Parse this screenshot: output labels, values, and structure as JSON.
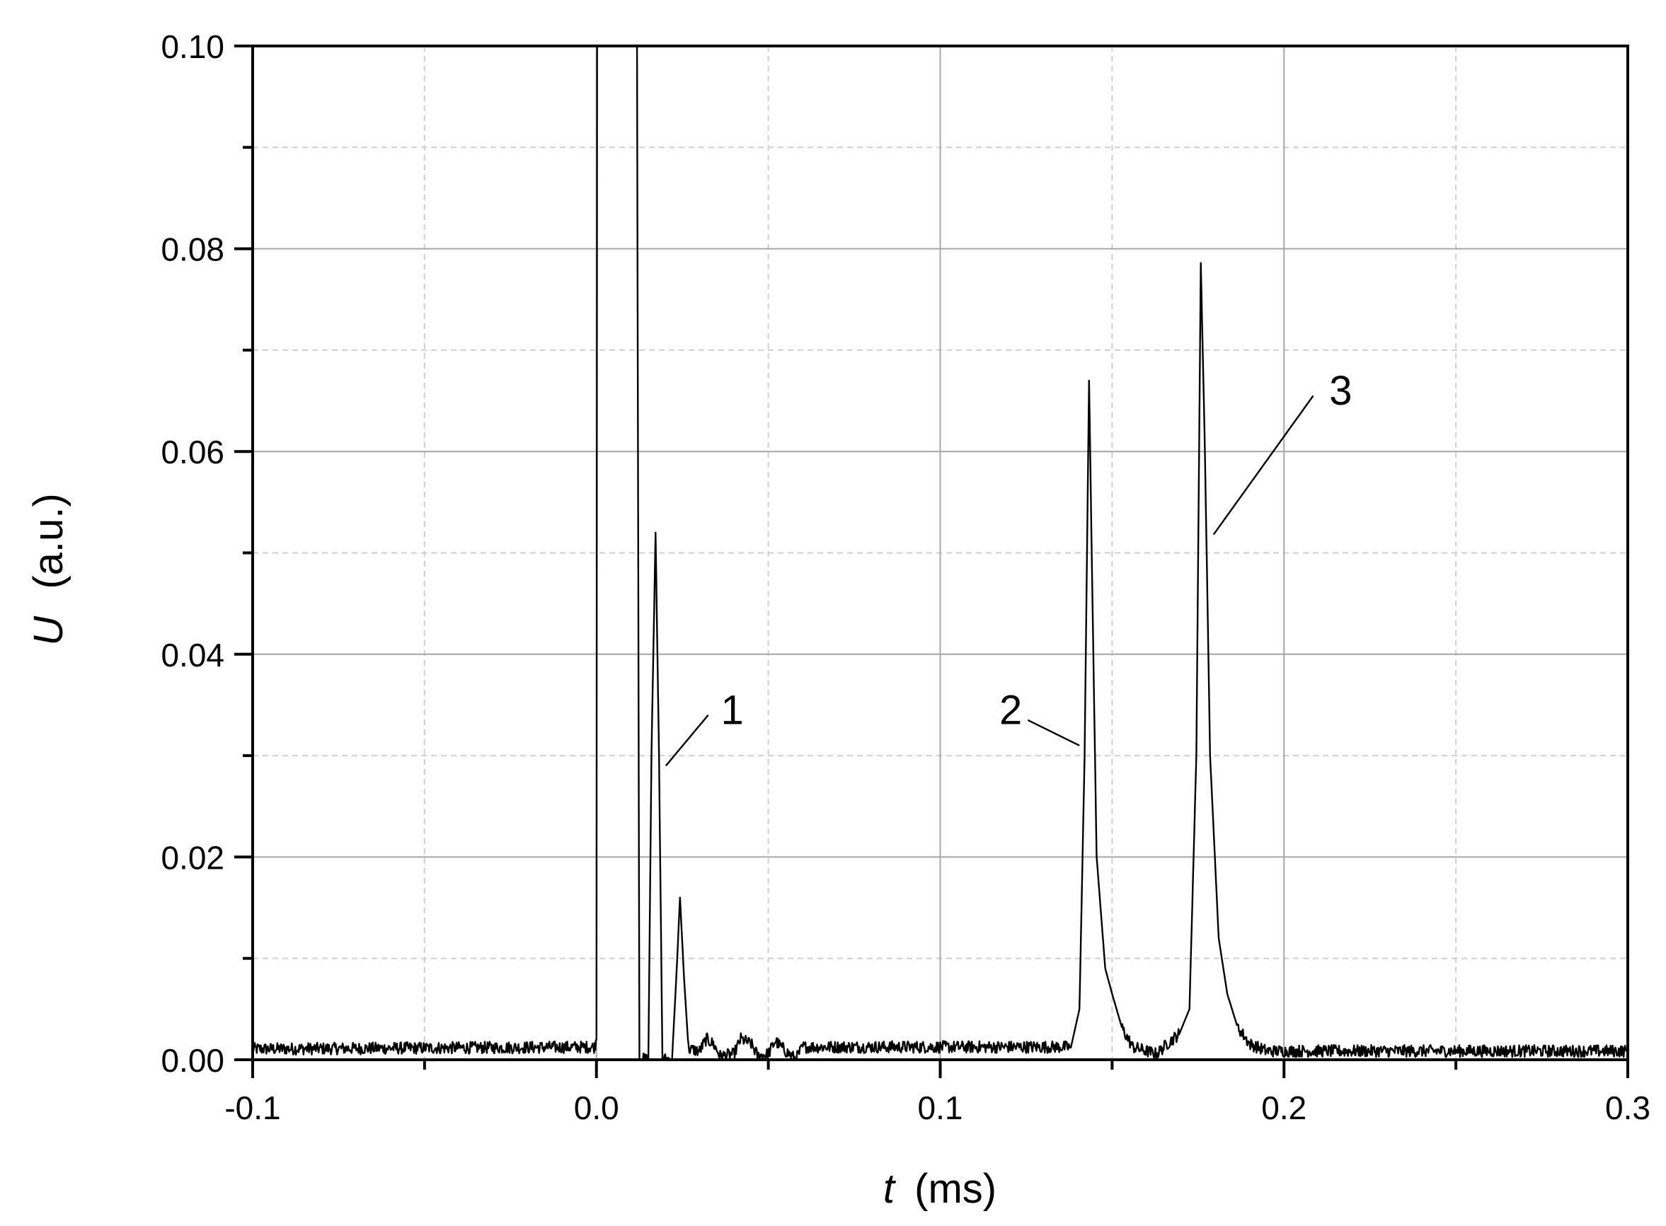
{
  "chart_data": {
    "type": "line",
    "title": "",
    "xlabel": {
      "symbol": "t",
      "unit": "(ms)"
    },
    "ylabel": {
      "symbol": "U",
      "unit": "(a.u.)"
    },
    "xlim": [
      -0.1,
      0.3
    ],
    "ylim": [
      0.0,
      0.1
    ],
    "x_ticks": [
      -0.1,
      0.0,
      0.1,
      0.2,
      0.3
    ],
    "x_tick_labels": [
      "-0.1",
      "0.0",
      "0.1",
      "0.2",
      "0.3"
    ],
    "x_minor_ticks": [
      -0.05,
      0.05,
      0.15,
      0.25
    ],
    "y_ticks": [
      0.0,
      0.02,
      0.04,
      0.06,
      0.08,
      0.1
    ],
    "y_tick_labels": [
      "0.00",
      "0.02",
      "0.04",
      "0.06",
      "0.08",
      "0.10"
    ],
    "y_minor_ticks": [
      0.01,
      0.03,
      0.05,
      0.07,
      0.09
    ],
    "grid": true,
    "legend": "none",
    "noise_level": 0.0012,
    "series": [
      {
        "points": [
          [
            -0.1,
            0.001
          ],
          [
            -0.0005,
            0.0012
          ],
          [
            0.0,
            0.002
          ],
          [
            0.0002,
            0.1
          ],
          [
            0.0118,
            0.1
          ],
          [
            0.0125,
            0.0
          ],
          [
            0.0151,
            0.0
          ],
          [
            0.016,
            0.03
          ],
          [
            0.0172,
            0.052
          ],
          [
            0.0182,
            0.03
          ],
          [
            0.0192,
            0.0
          ],
          [
            0.022,
            0.0
          ],
          [
            0.0235,
            0.01
          ],
          [
            0.0243,
            0.016
          ],
          [
            0.0255,
            0.008
          ],
          [
            0.0268,
            0.001
          ],
          [
            0.03,
            0.0008
          ],
          [
            0.032,
            0.002
          ],
          [
            0.034,
            0.0015
          ],
          [
            0.036,
            0.0003
          ],
          [
            0.04,
            0.0005
          ],
          [
            0.042,
            0.002
          ],
          [
            0.045,
            0.0015
          ],
          [
            0.047,
            0.0003
          ],
          [
            0.05,
            0.0005
          ],
          [
            0.052,
            0.0018
          ],
          [
            0.055,
            0.0008
          ],
          [
            0.058,
            0.0
          ],
          [
            0.06,
            0.0012
          ],
          [
            0.138,
            0.0012
          ],
          [
            0.1405,
            0.005
          ],
          [
            0.142,
            0.03
          ],
          [
            0.1433,
            0.067
          ],
          [
            0.1443,
            0.045
          ],
          [
            0.1455,
            0.02
          ],
          [
            0.148,
            0.009
          ],
          [
            0.15,
            0.0065
          ],
          [
            0.153,
            0.003
          ],
          [
            0.156,
            0.0012
          ],
          [
            0.16,
            0.0008
          ],
          [
            0.163,
            0.0005
          ],
          [
            0.166,
            0.0015
          ],
          [
            0.1695,
            0.0025
          ],
          [
            0.1725,
            0.005
          ],
          [
            0.1745,
            0.03
          ],
          [
            0.1758,
            0.0786
          ],
          [
            0.177,
            0.06
          ],
          [
            0.1785,
            0.03
          ],
          [
            0.181,
            0.012
          ],
          [
            0.1835,
            0.0065
          ],
          [
            0.1865,
            0.0032
          ],
          [
            0.19,
            0.0015
          ],
          [
            0.195,
            0.0008
          ],
          [
            0.3,
            0.0008
          ]
        ]
      }
    ],
    "annotations": [
      {
        "text": "1",
        "x": 0.0395,
        "y": 0.0345,
        "pointer": [
          0.0202,
          0.029
        ],
        "line_from": [
          0.0325,
          0.034
        ]
      },
      {
        "text": "2",
        "x": 0.1205,
        "y": 0.0345,
        "pointer": [
          0.1405,
          0.031
        ],
        "line_from": [
          0.1255,
          0.0335
        ]
      },
      {
        "text": "3",
        "x": 0.2165,
        "y": 0.066,
        "pointer": [
          0.1795,
          0.0518
        ],
        "line_from": [
          0.2085,
          0.0655
        ]
      }
    ]
  }
}
